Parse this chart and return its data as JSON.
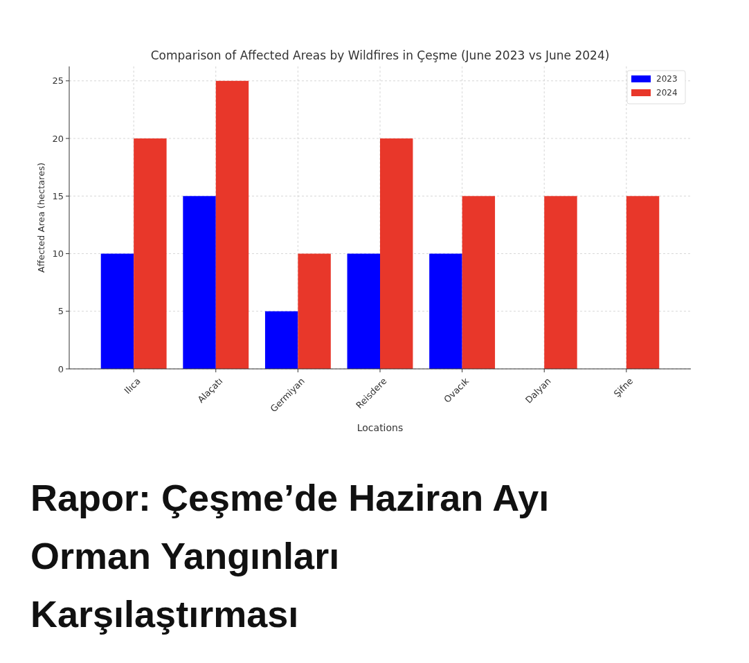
{
  "chart_data": {
    "type": "bar",
    "title": "Comparison of Affected Areas by Wildfires in Çeşme (June 2023 vs June 2024)",
    "xlabel": "Locations",
    "ylabel": "Affected Area (hectares)",
    "categories": [
      "Ilıca",
      "Alaçatı",
      "Germiyan",
      "Reisdere",
      "Ovacık",
      "Dalyan",
      "Şifne"
    ],
    "series": [
      {
        "name": "2023",
        "color": "#0000ff",
        "values": [
          10,
          15,
          5,
          10,
          10,
          0,
          0
        ]
      },
      {
        "name": "2024",
        "color": "#e8372a",
        "values": [
          20,
          25,
          10,
          20,
          15,
          15,
          15
        ]
      }
    ],
    "ylim": [
      0,
      26.25
    ],
    "yticks": [
      0,
      5,
      10,
      15,
      20,
      25
    ],
    "grid": true,
    "legend": "top right",
    "annotations": [
      "Rapor: Çeşme’de Haziran Ayı Orman Yangınları Karşılaştırması"
    ]
  }
}
